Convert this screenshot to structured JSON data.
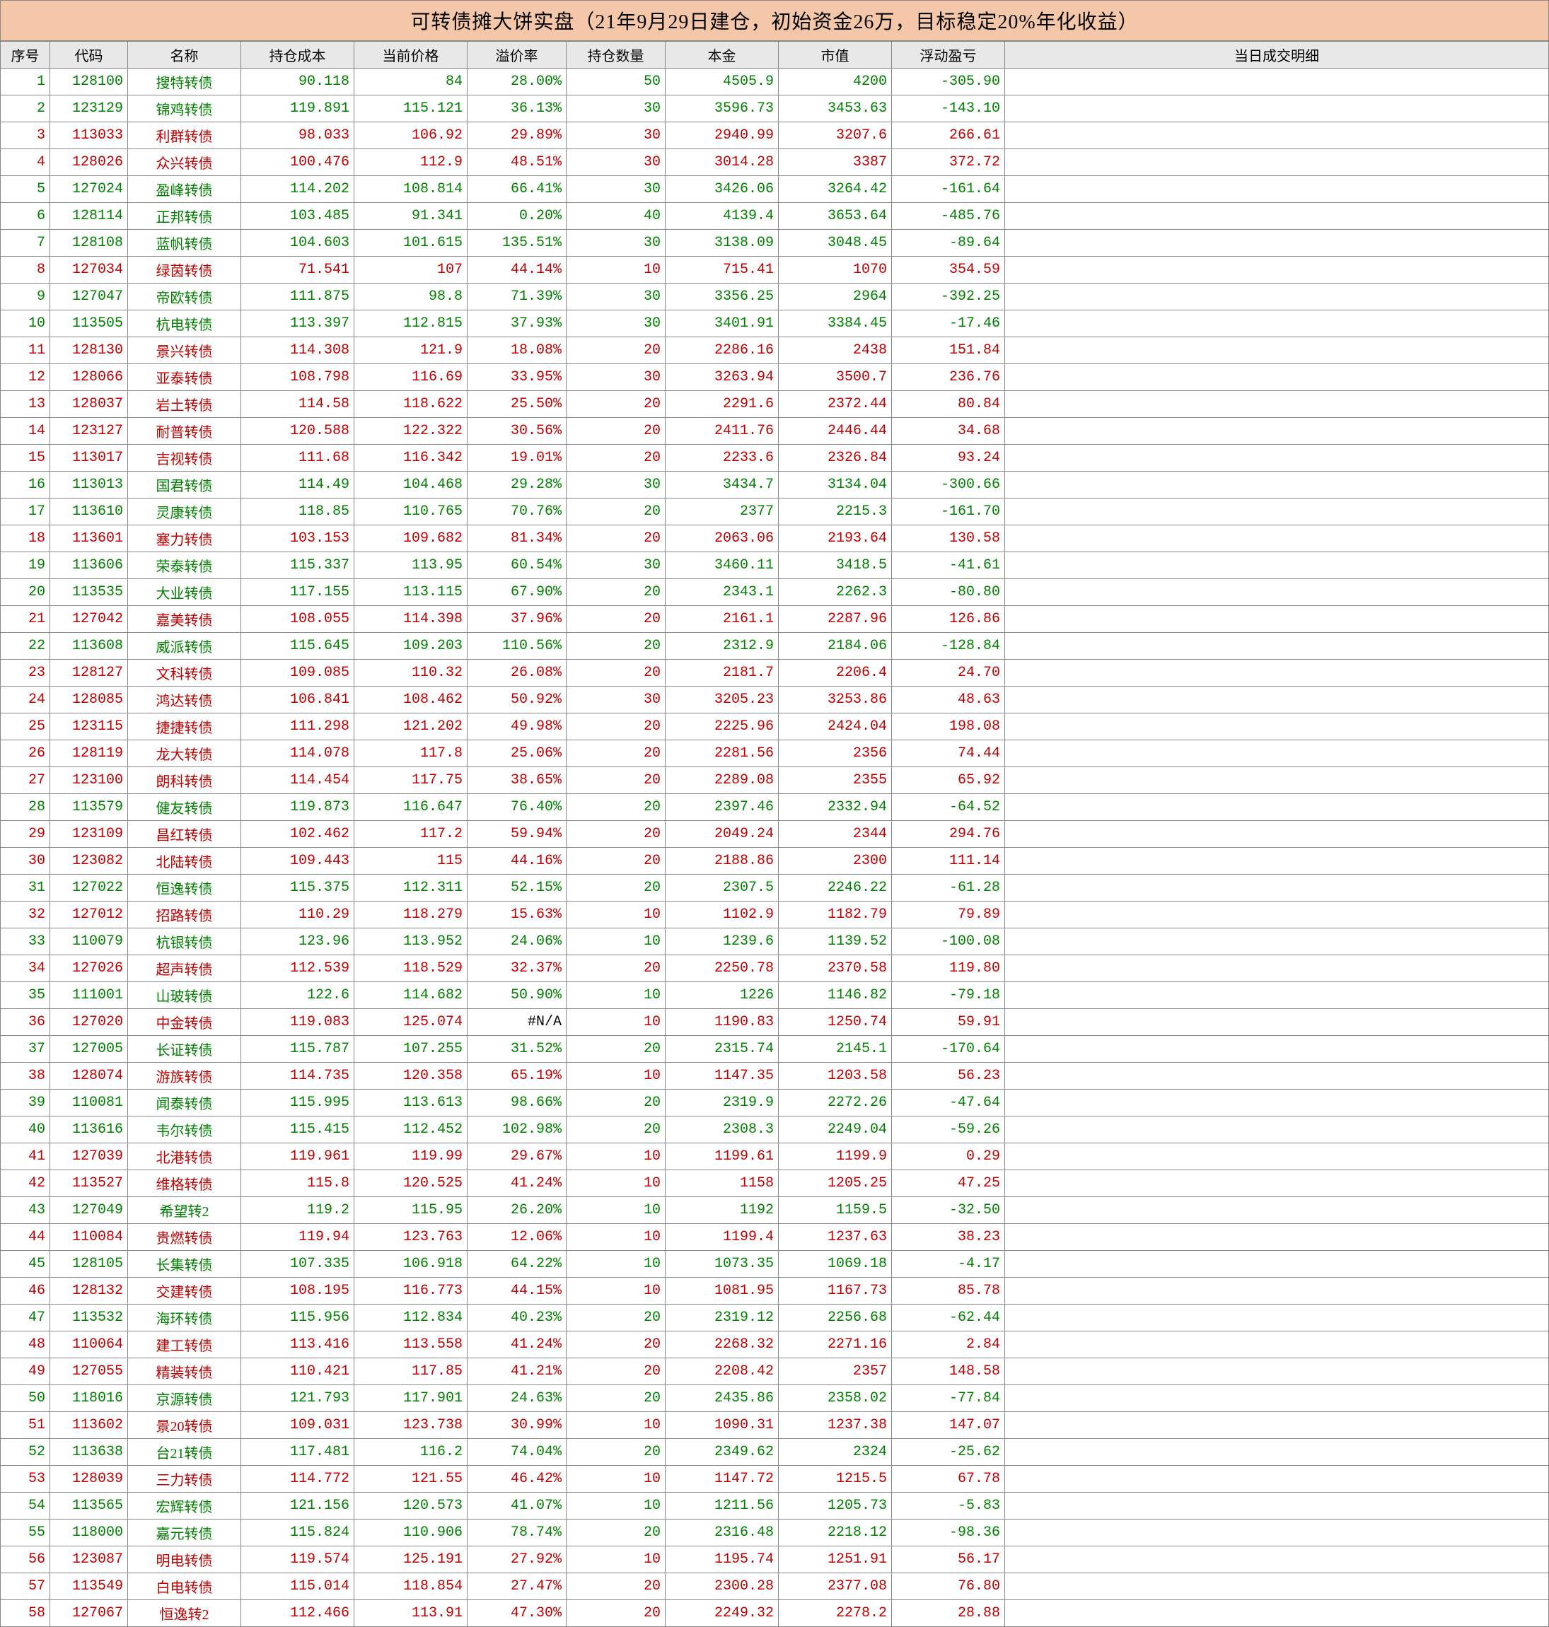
{
  "title": "可转债摊大饼实盘（21年9月29日建仓，初始资金26万，目标稳定20%年化收益）",
  "headers": [
    "序号",
    "代码",
    "名称",
    "持仓成本",
    "当前价格",
    "溢价率",
    "持仓数量",
    "本金",
    "市值",
    "浮动盈亏",
    "当日成交明细"
  ],
  "colors": {
    "green": "#008000",
    "red": "#c00000",
    "black": "#000000",
    "title_bg": "#f4c7a8",
    "header_bg": "#e8e8e8"
  },
  "rows": [
    {
      "seq": "1",
      "code": "128100",
      "name": "搜特转债",
      "cost": "90.118",
      "price": "84",
      "prem": "28.00%",
      "qty": "50",
      "prin": "4505.9",
      "mv": "4200",
      "pl": "-305.90",
      "c": "green"
    },
    {
      "seq": "2",
      "code": "123129",
      "name": "锦鸡转债",
      "cost": "119.891",
      "price": "115.121",
      "prem": "36.13%",
      "qty": "30",
      "prin": "3596.73",
      "mv": "3453.63",
      "pl": "-143.10",
      "c": "green"
    },
    {
      "seq": "3",
      "code": "113033",
      "name": "利群转债",
      "cost": "98.033",
      "price": "106.92",
      "prem": "29.89%",
      "qty": "30",
      "prin": "2940.99",
      "mv": "3207.6",
      "pl": "266.61",
      "c": "red"
    },
    {
      "seq": "4",
      "code": "128026",
      "name": "众兴转债",
      "cost": "100.476",
      "price": "112.9",
      "prem": "48.51%",
      "qty": "30",
      "prin": "3014.28",
      "mv": "3387",
      "pl": "372.72",
      "c": "red"
    },
    {
      "seq": "5",
      "code": "127024",
      "name": "盈峰转债",
      "cost": "114.202",
      "price": "108.814",
      "prem": "66.41%",
      "qty": "30",
      "prin": "3426.06",
      "mv": "3264.42",
      "pl": "-161.64",
      "c": "green"
    },
    {
      "seq": "6",
      "code": "128114",
      "name": "正邦转债",
      "cost": "103.485",
      "price": "91.341",
      "prem": "0.20%",
      "qty": "40",
      "prin": "4139.4",
      "mv": "3653.64",
      "pl": "-485.76",
      "c": "green"
    },
    {
      "seq": "7",
      "code": "128108",
      "name": "蓝帆转债",
      "cost": "104.603",
      "price": "101.615",
      "prem": "135.51%",
      "qty": "30",
      "prin": "3138.09",
      "mv": "3048.45",
      "pl": "-89.64",
      "c": "green"
    },
    {
      "seq": "8",
      "code": "127034",
      "name": "绿茵转债",
      "cost": "71.541",
      "price": "107",
      "prem": "44.14%",
      "qty": "10",
      "prin": "715.41",
      "mv": "1070",
      "pl": "354.59",
      "c": "red"
    },
    {
      "seq": "9",
      "code": "127047",
      "name": "帝欧转债",
      "cost": "111.875",
      "price": "98.8",
      "prem": "71.39%",
      "qty": "30",
      "prin": "3356.25",
      "mv": "2964",
      "pl": "-392.25",
      "c": "green"
    },
    {
      "seq": "10",
      "code": "113505",
      "name": "杭电转债",
      "cost": "113.397",
      "price": "112.815",
      "prem": "37.93%",
      "qty": "30",
      "prin": "3401.91",
      "mv": "3384.45",
      "pl": "-17.46",
      "c": "green"
    },
    {
      "seq": "11",
      "code": "128130",
      "name": "景兴转债",
      "cost": "114.308",
      "price": "121.9",
      "prem": "18.08%",
      "qty": "20",
      "prin": "2286.16",
      "mv": "2438",
      "pl": "151.84",
      "c": "red"
    },
    {
      "seq": "12",
      "code": "128066",
      "name": "亚泰转债",
      "cost": "108.798",
      "price": "116.69",
      "prem": "33.95%",
      "qty": "30",
      "prin": "3263.94",
      "mv": "3500.7",
      "pl": "236.76",
      "c": "red"
    },
    {
      "seq": "13",
      "code": "128037",
      "name": "岩土转债",
      "cost": "114.58",
      "price": "118.622",
      "prem": "25.50%",
      "qty": "20",
      "prin": "2291.6",
      "mv": "2372.44",
      "pl": "80.84",
      "c": "red"
    },
    {
      "seq": "14",
      "code": "123127",
      "name": "耐普转债",
      "cost": "120.588",
      "price": "122.322",
      "prem": "30.56%",
      "qty": "20",
      "prin": "2411.76",
      "mv": "2446.44",
      "pl": "34.68",
      "c": "red"
    },
    {
      "seq": "15",
      "code": "113017",
      "name": "吉视转债",
      "cost": "111.68",
      "price": "116.342",
      "prem": "19.01%",
      "qty": "20",
      "prin": "2233.6",
      "mv": "2326.84",
      "pl": "93.24",
      "c": "red"
    },
    {
      "seq": "16",
      "code": "113013",
      "name": "国君转债",
      "cost": "114.49",
      "price": "104.468",
      "prem": "29.28%",
      "qty": "30",
      "prin": "3434.7",
      "mv": "3134.04",
      "pl": "-300.66",
      "c": "green"
    },
    {
      "seq": "17",
      "code": "113610",
      "name": "灵康转债",
      "cost": "118.85",
      "price": "110.765",
      "prem": "70.76%",
      "qty": "20",
      "prin": "2377",
      "mv": "2215.3",
      "pl": "-161.70",
      "c": "green"
    },
    {
      "seq": "18",
      "code": "113601",
      "name": "塞力转债",
      "cost": "103.153",
      "price": "109.682",
      "prem": "81.34%",
      "qty": "20",
      "prin": "2063.06",
      "mv": "2193.64",
      "pl": "130.58",
      "c": "red"
    },
    {
      "seq": "19",
      "code": "113606",
      "name": "荣泰转债",
      "cost": "115.337",
      "price": "113.95",
      "prem": "60.54%",
      "qty": "30",
      "prin": "3460.11",
      "mv": "3418.5",
      "pl": "-41.61",
      "c": "green"
    },
    {
      "seq": "20",
      "code": "113535",
      "name": "大业转债",
      "cost": "117.155",
      "price": "113.115",
      "prem": "67.90%",
      "qty": "20",
      "prin": "2343.1",
      "mv": "2262.3",
      "pl": "-80.80",
      "c": "green"
    },
    {
      "seq": "21",
      "code": "127042",
      "name": "嘉美转债",
      "cost": "108.055",
      "price": "114.398",
      "prem": "37.96%",
      "qty": "20",
      "prin": "2161.1",
      "mv": "2287.96",
      "pl": "126.86",
      "c": "red"
    },
    {
      "seq": "22",
      "code": "113608",
      "name": "威派转债",
      "cost": "115.645",
      "price": "109.203",
      "prem": "110.56%",
      "qty": "20",
      "prin": "2312.9",
      "mv": "2184.06",
      "pl": "-128.84",
      "c": "green"
    },
    {
      "seq": "23",
      "code": "128127",
      "name": "文科转债",
      "cost": "109.085",
      "price": "110.32",
      "prem": "26.08%",
      "qty": "20",
      "prin": "2181.7",
      "mv": "2206.4",
      "pl": "24.70",
      "c": "red"
    },
    {
      "seq": "24",
      "code": "128085",
      "name": "鸿达转债",
      "cost": "106.841",
      "price": "108.462",
      "prem": "50.92%",
      "qty": "30",
      "prin": "3205.23",
      "mv": "3253.86",
      "pl": "48.63",
      "c": "red"
    },
    {
      "seq": "25",
      "code": "123115",
      "name": "捷捷转债",
      "cost": "111.298",
      "price": "121.202",
      "prem": "49.98%",
      "qty": "20",
      "prin": "2225.96",
      "mv": "2424.04",
      "pl": "198.08",
      "c": "red"
    },
    {
      "seq": "26",
      "code": "128119",
      "name": "龙大转债",
      "cost": "114.078",
      "price": "117.8",
      "prem": "25.06%",
      "qty": "20",
      "prin": "2281.56",
      "mv": "2356",
      "pl": "74.44",
      "c": "red"
    },
    {
      "seq": "27",
      "code": "123100",
      "name": "朗科转债",
      "cost": "114.454",
      "price": "117.75",
      "prem": "38.65%",
      "qty": "20",
      "prin": "2289.08",
      "mv": "2355",
      "pl": "65.92",
      "c": "red"
    },
    {
      "seq": "28",
      "code": "113579",
      "name": "健友转债",
      "cost": "119.873",
      "price": "116.647",
      "prem": "76.40%",
      "qty": "20",
      "prin": "2397.46",
      "mv": "2332.94",
      "pl": "-64.52",
      "c": "green"
    },
    {
      "seq": "29",
      "code": "123109",
      "name": "昌红转债",
      "cost": "102.462",
      "price": "117.2",
      "prem": "59.94%",
      "qty": "20",
      "prin": "2049.24",
      "mv": "2344",
      "pl": "294.76",
      "c": "red"
    },
    {
      "seq": "30",
      "code": "123082",
      "name": "北陆转债",
      "cost": "109.443",
      "price": "115",
      "prem": "44.16%",
      "qty": "20",
      "prin": "2188.86",
      "mv": "2300",
      "pl": "111.14",
      "c": "red"
    },
    {
      "seq": "31",
      "code": "127022",
      "name": "恒逸转债",
      "cost": "115.375",
      "price": "112.311",
      "prem": "52.15%",
      "qty": "20",
      "prin": "2307.5",
      "mv": "2246.22",
      "pl": "-61.28",
      "c": "green"
    },
    {
      "seq": "32",
      "code": "127012",
      "name": "招路转债",
      "cost": "110.29",
      "price": "118.279",
      "prem": "15.63%",
      "qty": "10",
      "prin": "1102.9",
      "mv": "1182.79",
      "pl": "79.89",
      "c": "red"
    },
    {
      "seq": "33",
      "code": "110079",
      "name": "杭银转债",
      "cost": "123.96",
      "price": "113.952",
      "prem": "24.06%",
      "qty": "10",
      "prin": "1239.6",
      "mv": "1139.52",
      "pl": "-100.08",
      "c": "green"
    },
    {
      "seq": "34",
      "code": "127026",
      "name": "超声转债",
      "cost": "112.539",
      "price": "118.529",
      "prem": "32.37%",
      "qty": "20",
      "prin": "2250.78",
      "mv": "2370.58",
      "pl": "119.80",
      "c": "red"
    },
    {
      "seq": "35",
      "code": "111001",
      "name": "山玻转债",
      "cost": "122.6",
      "price": "114.682",
      "prem": "50.90%",
      "qty": "10",
      "prin": "1226",
      "mv": "1146.82",
      "pl": "-79.18",
      "c": "green"
    },
    {
      "seq": "36",
      "code": "127020",
      "name": "中金转债",
      "cost": "119.083",
      "price": "125.074",
      "prem": "#N/A",
      "qty": "10",
      "prin": "1190.83",
      "mv": "1250.74",
      "pl": "59.91",
      "c": "red"
    },
    {
      "seq": "37",
      "code": "127005",
      "name": "长证转债",
      "cost": "115.787",
      "price": "107.255",
      "prem": "31.52%",
      "qty": "20",
      "prin": "2315.74",
      "mv": "2145.1",
      "pl": "-170.64",
      "c": "green"
    },
    {
      "seq": "38",
      "code": "128074",
      "name": "游族转债",
      "cost": "114.735",
      "price": "120.358",
      "prem": "65.19%",
      "qty": "10",
      "prin": "1147.35",
      "mv": "1203.58",
      "pl": "56.23",
      "c": "red"
    },
    {
      "seq": "39",
      "code": "110081",
      "name": "闻泰转债",
      "cost": "115.995",
      "price": "113.613",
      "prem": "98.66%",
      "qty": "20",
      "prin": "2319.9",
      "mv": "2272.26",
      "pl": "-47.64",
      "c": "green"
    },
    {
      "seq": "40",
      "code": "113616",
      "name": "韦尔转债",
      "cost": "115.415",
      "price": "112.452",
      "prem": "102.98%",
      "qty": "20",
      "prin": "2308.3",
      "mv": "2249.04",
      "pl": "-59.26",
      "c": "green"
    },
    {
      "seq": "41",
      "code": "127039",
      "name": "北港转债",
      "cost": "119.961",
      "price": "119.99",
      "prem": "29.67%",
      "qty": "10",
      "prin": "1199.61",
      "mv": "1199.9",
      "pl": "0.29",
      "c": "red"
    },
    {
      "seq": "42",
      "code": "113527",
      "name": "维格转债",
      "cost": "115.8",
      "price": "120.525",
      "prem": "41.24%",
      "qty": "10",
      "prin": "1158",
      "mv": "1205.25",
      "pl": "47.25",
      "c": "red"
    },
    {
      "seq": "43",
      "code": "127049",
      "name": "希望转2",
      "cost": "119.2",
      "price": "115.95",
      "prem": "26.20%",
      "qty": "10",
      "prin": "1192",
      "mv": "1159.5",
      "pl": "-32.50",
      "c": "green"
    },
    {
      "seq": "44",
      "code": "110084",
      "name": "贵燃转债",
      "cost": "119.94",
      "price": "123.763",
      "prem": "12.06%",
      "qty": "10",
      "prin": "1199.4",
      "mv": "1237.63",
      "pl": "38.23",
      "c": "red"
    },
    {
      "seq": "45",
      "code": "128105",
      "name": "长集转债",
      "cost": "107.335",
      "price": "106.918",
      "prem": "64.22%",
      "qty": "10",
      "prin": "1073.35",
      "mv": "1069.18",
      "pl": "-4.17",
      "c": "green"
    },
    {
      "seq": "46",
      "code": "128132",
      "name": "交建转债",
      "cost": "108.195",
      "price": "116.773",
      "prem": "44.15%",
      "qty": "10",
      "prin": "1081.95",
      "mv": "1167.73",
      "pl": "85.78",
      "c": "red"
    },
    {
      "seq": "47",
      "code": "113532",
      "name": "海环转债",
      "cost": "115.956",
      "price": "112.834",
      "prem": "40.23%",
      "qty": "20",
      "prin": "2319.12",
      "mv": "2256.68",
      "pl": "-62.44",
      "c": "green"
    },
    {
      "seq": "48",
      "code": "110064",
      "name": "建工转债",
      "cost": "113.416",
      "price": "113.558",
      "prem": "41.24%",
      "qty": "20",
      "prin": "2268.32",
      "mv": "2271.16",
      "pl": "2.84",
      "c": "red"
    },
    {
      "seq": "49",
      "code": "127055",
      "name": "精装转债",
      "cost": "110.421",
      "price": "117.85",
      "prem": "41.21%",
      "qty": "20",
      "prin": "2208.42",
      "mv": "2357",
      "pl": "148.58",
      "c": "red"
    },
    {
      "seq": "50",
      "code": "118016",
      "name": "京源转债",
      "cost": "121.793",
      "price": "117.901",
      "prem": "24.63%",
      "qty": "20",
      "prin": "2435.86",
      "mv": "2358.02",
      "pl": "-77.84",
      "c": "green"
    },
    {
      "seq": "51",
      "code": "113602",
      "name": "景20转债",
      "cost": "109.031",
      "price": "123.738",
      "prem": "30.99%",
      "qty": "10",
      "prin": "1090.31",
      "mv": "1237.38",
      "pl": "147.07",
      "c": "red"
    },
    {
      "seq": "52",
      "code": "113638",
      "name": "台21转债",
      "cost": "117.481",
      "price": "116.2",
      "prem": "74.04%",
      "qty": "20",
      "prin": "2349.62",
      "mv": "2324",
      "pl": "-25.62",
      "c": "green"
    },
    {
      "seq": "53",
      "code": "128039",
      "name": "三力转债",
      "cost": "114.772",
      "price": "121.55",
      "prem": "46.42%",
      "qty": "10",
      "prin": "1147.72",
      "mv": "1215.5",
      "pl": "67.78",
      "c": "red"
    },
    {
      "seq": "54",
      "code": "113565",
      "name": "宏辉转债",
      "cost": "121.156",
      "price": "120.573",
      "prem": "41.07%",
      "qty": "10",
      "prin": "1211.56",
      "mv": "1205.73",
      "pl": "-5.83",
      "c": "green"
    },
    {
      "seq": "55",
      "code": "118000",
      "name": "嘉元转债",
      "cost": "115.824",
      "price": "110.906",
      "prem": "78.74%",
      "qty": "20",
      "prin": "2316.48",
      "mv": "2218.12",
      "pl": "-98.36",
      "c": "green"
    },
    {
      "seq": "56",
      "code": "123087",
      "name": "明电转债",
      "cost": "119.574",
      "price": "125.191",
      "prem": "27.92%",
      "qty": "10",
      "prin": "1195.74",
      "mv": "1251.91",
      "pl": "56.17",
      "c": "red"
    },
    {
      "seq": "57",
      "code": "113549",
      "name": "白电转债",
      "cost": "115.014",
      "price": "118.854",
      "prem": "27.47%",
      "qty": "20",
      "prin": "2300.28",
      "mv": "2377.08",
      "pl": "76.80",
      "c": "red"
    },
    {
      "seq": "58",
      "code": "127067",
      "name": "恒逸转2",
      "cost": "112.466",
      "price": "113.91",
      "prem": "47.30%",
      "qty": "20",
      "prin": "2249.32",
      "mv": "2278.2",
      "pl": "28.88",
      "c": "red"
    }
  ]
}
